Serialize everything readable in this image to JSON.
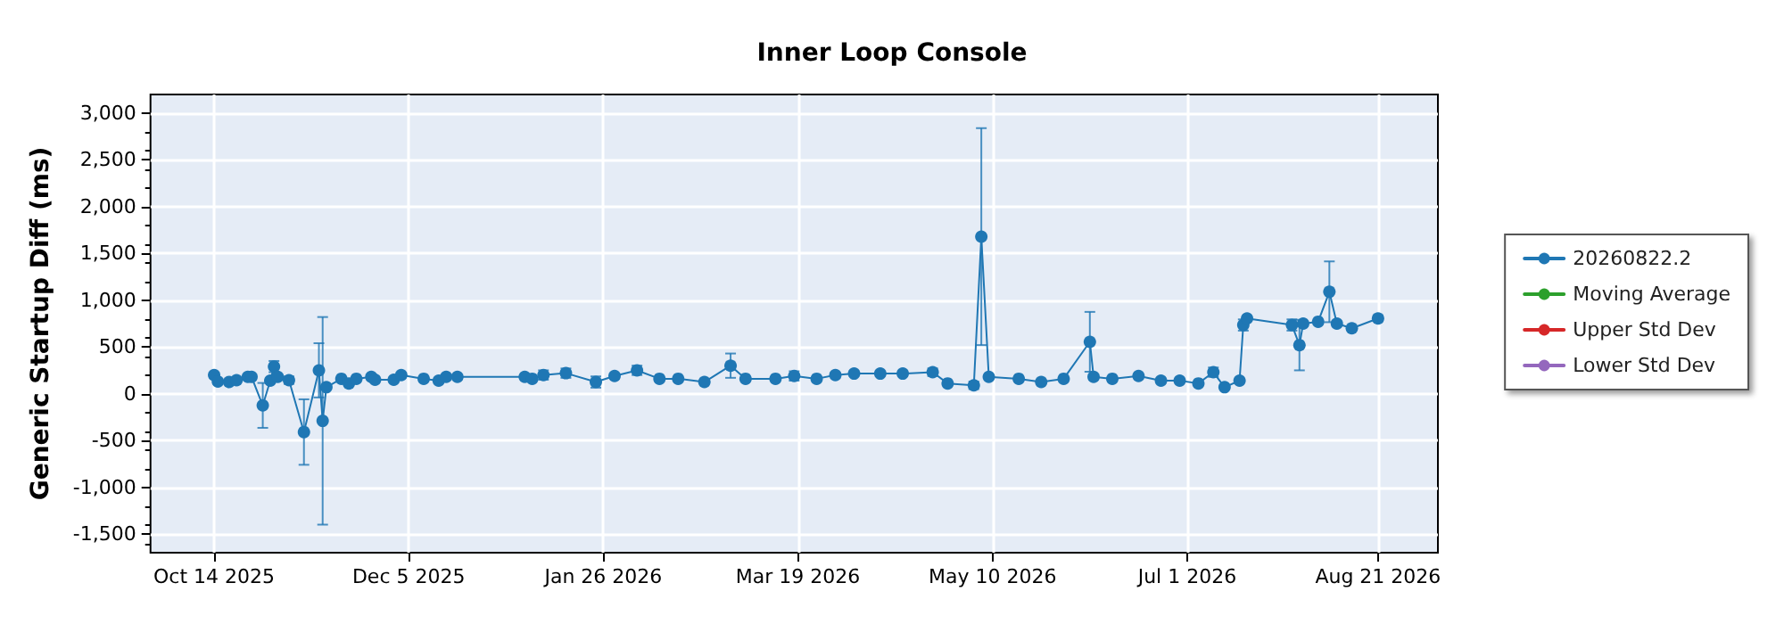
{
  "chart_data": {
    "type": "line",
    "title": "Inner Loop Console",
    "ylabel": "Generic Startup Diff (ms)",
    "xlim": [
      "2025-09-27",
      "2026-09-06"
    ],
    "xticks": [
      {
        "value": "2025-10-14",
        "label": "Oct 14 2025"
      },
      {
        "value": "2025-12-05",
        "label": "Dec 5 2025"
      },
      {
        "value": "2026-01-26",
        "label": "Jan 26 2026"
      },
      {
        "value": "2026-03-19",
        "label": "Mar 19 2026"
      },
      {
        "value": "2026-05-10",
        "label": "May 10 2026"
      },
      {
        "value": "2026-07-01",
        "label": "Jul 1 2026"
      },
      {
        "value": "2026-08-21",
        "label": "Aug 21 2026"
      }
    ],
    "ylim": [
      -1700,
      3200
    ],
    "yticks": [
      {
        "value": -1500,
        "label": "-1,500"
      },
      {
        "value": -1000,
        "label": "-1,000"
      },
      -500,
      0,
      500,
      {
        "value": 1000,
        "label": "1,000"
      },
      {
        "value": 1500,
        "label": "1,500"
      },
      {
        "value": 2000,
        "label": "2,000"
      },
      {
        "value": 2500,
        "label": "2,500"
      },
      {
        "value": 3000,
        "label": "3,000"
      }
    ],
    "grid": true,
    "legend": "right",
    "marker": "circle",
    "line_style": "solid",
    "series": [
      {
        "name": "20260822.2",
        "color": "#1f77b4",
        "x": [
          "2025-10-14",
          "2025-10-15",
          "2025-10-18",
          "2025-10-20",
          "2025-10-23",
          "2025-10-24",
          "2025-10-27",
          "2025-10-29",
          "2025-10-30",
          "2025-10-31",
          "2025-11-03",
          "2025-11-07",
          "2025-11-11",
          "2025-11-12",
          "2025-11-13",
          "2025-11-17",
          "2025-11-19",
          "2025-11-21",
          "2025-11-25",
          "2025-11-26",
          "2025-12-01",
          "2025-12-03",
          "2025-12-09",
          "2025-12-13",
          "2025-12-15",
          "2025-12-18",
          "2026-01-05",
          "2026-01-07",
          "2026-01-10",
          "2026-01-16",
          "2026-01-24",
          "2026-01-29",
          "2026-02-04",
          "2026-02-10",
          "2026-02-15",
          "2026-02-22",
          "2026-03-01",
          "2026-03-05",
          "2026-03-13",
          "2026-03-18",
          "2026-03-24",
          "2026-03-29",
          "2026-04-03",
          "2026-04-10",
          "2026-04-16",
          "2026-04-24",
          "2026-04-28",
          "2026-05-05",
          "2026-05-07",
          "2026-05-09",
          "2026-05-17",
          "2026-05-23",
          "2026-05-29",
          "2026-06-05",
          "2026-06-06",
          "2026-06-11",
          "2026-06-18",
          "2026-06-24",
          "2026-06-29",
          "2026-07-04",
          "2026-07-08",
          "2026-07-11",
          "2026-07-15",
          "2026-07-16",
          "2026-07-17",
          "2026-07-29",
          "2026-07-31",
          "2026-08-01",
          "2026-08-05",
          "2026-08-08",
          "2026-08-10",
          "2026-08-14",
          "2026-08-21"
        ],
        "values": [
          200,
          130,
          125,
          145,
          180,
          180,
          -125,
          140,
          290,
          180,
          145,
          -410,
          250,
          -290,
          70,
          160,
          110,
          160,
          180,
          150,
          150,
          200,
          160,
          140,
          180,
          180,
          180,
          160,
          200,
          220,
          125,
          190,
          250,
          160,
          160,
          125,
          300,
          160,
          160,
          190,
          160,
          200,
          215,
          215,
          215,
          230,
          110,
          90,
          1680,
          180,
          160,
          125,
          160,
          555,
          180,
          160,
          190,
          140,
          140,
          110,
          230,
          70,
          140,
          735,
          805,
          735,
          520,
          750,
          770,
          1090,
          750,
          700,
          805
        ],
        "errors": [
          null,
          null,
          null,
          null,
          null,
          null,
          240,
          null,
          60,
          null,
          40,
          350,
          290,
          1110,
          null,
          null,
          null,
          null,
          null,
          null,
          null,
          null,
          null,
          null,
          null,
          null,
          null,
          null,
          50,
          50,
          60,
          null,
          50,
          null,
          null,
          null,
          130,
          null,
          null,
          50,
          null,
          null,
          null,
          null,
          null,
          40,
          null,
          40,
          1160,
          null,
          null,
          null,
          null,
          320,
          null,
          null,
          null,
          null,
          null,
          null,
          50,
          null,
          null,
          60,
          null,
          60,
          270,
          null,
          null,
          325,
          null,
          null,
          30
        ]
      },
      {
        "name": "Moving Average",
        "color": "#2ca02c"
      },
      {
        "name": "Upper Std Dev",
        "color": "#d62728"
      },
      {
        "name": "Lower Std Dev",
        "color": "#9467bd"
      }
    ]
  }
}
